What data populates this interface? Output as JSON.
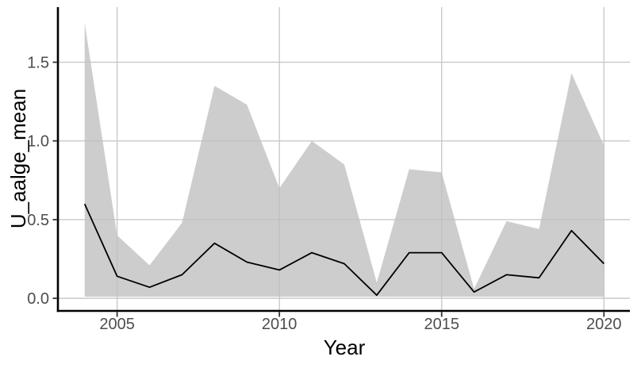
{
  "chart_data": {
    "type": "line",
    "title": "",
    "xlabel": "Year",
    "ylabel": "U_aalge_mean",
    "x": [
      2004,
      2005,
      2006,
      2007,
      2008,
      2009,
      2010,
      2011,
      2012,
      2013,
      2014,
      2015,
      2016,
      2017,
      2018,
      2019,
      2020
    ],
    "series": [
      {
        "name": "U_aalge_mean",
        "type": "line",
        "color": "#000000",
        "values": [
          0.6,
          0.14,
          0.07,
          0.15,
          0.35,
          0.23,
          0.18,
          0.29,
          0.22,
          0.02,
          0.29,
          0.29,
          0.04,
          0.15,
          0.13,
          0.43,
          0.22
        ]
      },
      {
        "name": "confidence-band",
        "type": "ribbon",
        "fill": "#cccccc",
        "upper": [
          1.75,
          0.4,
          0.21,
          0.48,
          1.35,
          1.23,
          0.7,
          1.0,
          0.85,
          0.1,
          0.82,
          0.8,
          0.06,
          0.49,
          0.44,
          1.43,
          0.97
        ],
        "lower": [
          0.01,
          0.01,
          0.01,
          0.01,
          0.01,
          0.01,
          0.01,
          0.01,
          0.01,
          0.01,
          0.01,
          0.01,
          0.01,
          0.01,
          0.01,
          0.01,
          0.01
        ]
      }
    ],
    "x_ticks": {
      "values": [
        2005,
        2010,
        2015,
        2020
      ],
      "labels": [
        "2005",
        "2010",
        "2015",
        "2020"
      ]
    },
    "y_ticks": {
      "values": [
        0,
        0.5,
        1,
        1.5
      ],
      "labels": [
        "0.0",
        "0.5",
        "1.0",
        "1.5"
      ]
    },
    "x_domain": [
      2003.2,
      2020.8
    ],
    "y_domain": [
      -0.08,
      1.85
    ],
    "grid": "major",
    "legend": "none",
    "colors": {
      "grid": "#c9c9c9",
      "ribbon": "#bfbfbf",
      "line": "#000000",
      "tick_label": "#4d4d4d",
      "axis": "#000000"
    }
  }
}
